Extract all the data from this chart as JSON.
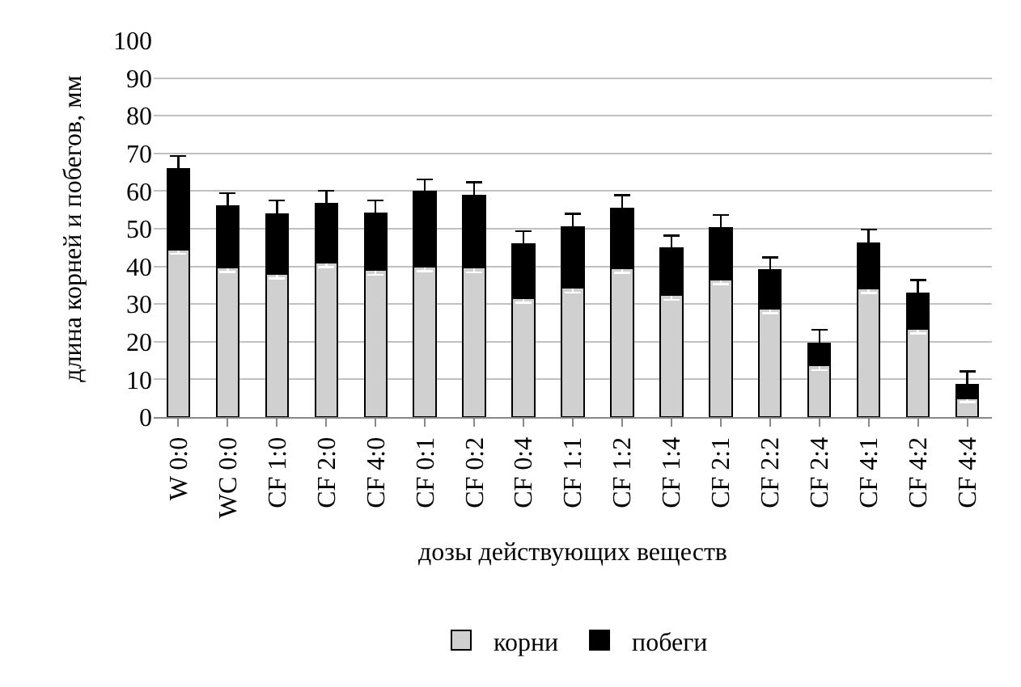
{
  "chart_data": {
    "type": "bar",
    "stacked": true,
    "xlabel": "дозы действующих веществ",
    "ylabel": "длина корней и побегов, мм",
    "categories": [
      "W 0:0",
      "WC 0:0",
      "CF 1:0",
      "CF 2:0",
      "CF 4:0",
      "CF 0:1",
      "CF 0:2",
      "CF 0:4",
      "CF 1:1",
      "CF 1:2",
      "CF 1:4",
      "CF 2:1",
      "CF 2:2",
      "CF 2:4",
      "CF 4:1",
      "CF 4:2",
      "CF 4:4"
    ],
    "series": [
      {
        "name": "корни",
        "color": "#d0d0d0",
        "values": [
          44.5,
          39.7,
          38,
          41,
          39,
          39.9,
          39.6,
          31.6,
          34.3,
          39.5,
          32.3,
          36.5,
          28.8,
          13.7,
          34.1,
          23.4,
          5
        ],
        "errors": [
          1.2,
          1.2,
          1.2,
          1.2,
          1.2,
          1.2,
          1.2,
          1.2,
          1.2,
          1.2,
          1.2,
          1.2,
          1.2,
          1.2,
          1.2,
          1.2,
          1
        ]
      },
      {
        "name": "побеги",
        "color": "#000000",
        "values": [
          21.3,
          16.4,
          15.9,
          15.7,
          15,
          19.9,
          19.1,
          14.4,
          16.2,
          15.9,
          12.6,
          13.7,
          10.2,
          5.9,
          12.1,
          9.4,
          3.6
        ],
        "errors": [
          3.5,
          3.3,
          3.6,
          3.4,
          3.5,
          3.3,
          3.6,
          3.4,
          3.5,
          3.5,
          3.3,
          3.4,
          3.4,
          3.6,
          3.6,
          3.6,
          3.5
        ]
      }
    ],
    "ylim": [
      0,
      100
    ],
    "yticks": [
      0,
      10,
      20,
      30,
      40,
      50,
      60,
      70,
      80,
      90,
      100
    ],
    "grid": "y",
    "legend": "bottom"
  }
}
